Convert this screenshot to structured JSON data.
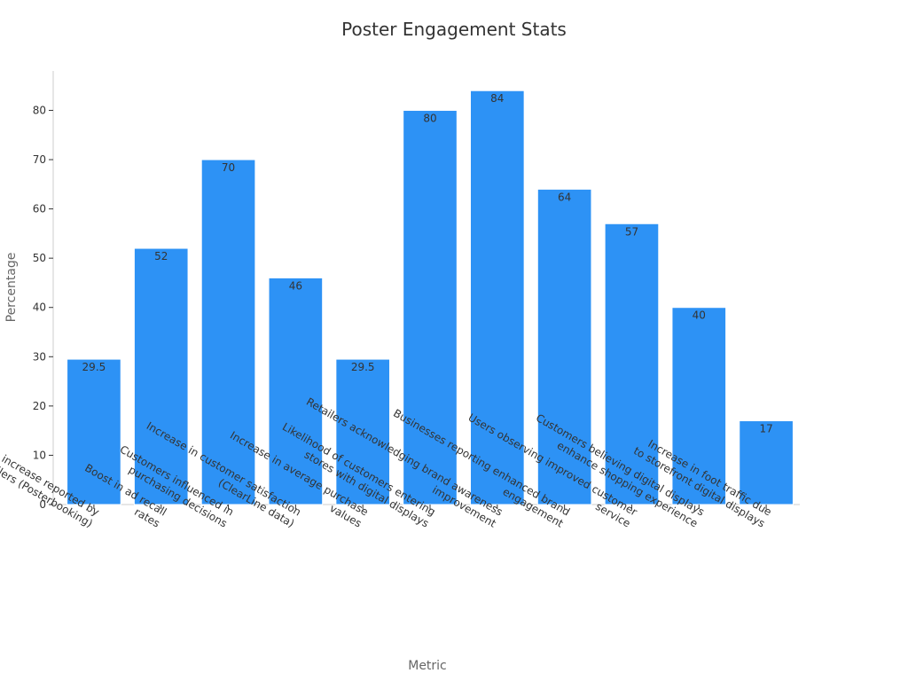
{
  "chart_data": {
    "type": "bar",
    "title": "Poster Engagement Stats",
    "xlabel": "Metric",
    "ylabel": "Percentage",
    "categories": [
      [
        "Sales increase reported by",
        "retailers (Posterbooking)"
      ],
      [
        "Boost in ad recall",
        "rates"
      ],
      [
        "Customers influenced in",
        "purchasing decisions"
      ],
      [
        "Increase in customer satisfaction",
        "(ClearLine data)"
      ],
      [
        "Increase in average purchase",
        "values"
      ],
      [
        "Likelihood of customers entering",
        "stores with digital displays"
      ],
      [
        "Retailers acknowledging brand awareness",
        "improvement"
      ],
      [
        "Businesses reporting enhanced brand",
        "engagement"
      ],
      [
        "Users observing improved customer",
        "service"
      ],
      [
        "Customers believing digital displays",
        "enhance shopping experience"
      ],
      [
        "Increase in foot traffic due",
        "to storefront digital displays"
      ]
    ],
    "values": [
      29.5,
      52,
      70,
      46,
      29.5,
      80,
      84,
      64,
      57,
      40,
      17
    ],
    "data_labels": [
      "29.5",
      "52",
      "70",
      "46",
      "29.5",
      "80",
      "84",
      "64",
      "57",
      "40",
      "17"
    ],
    "yticks": [
      0,
      10,
      20,
      30,
      40,
      50,
      60,
      70,
      80
    ],
    "ylim": [
      0,
      88
    ],
    "grid": false,
    "legend": "none",
    "colors": {
      "bar": "#2d92f5",
      "axis": "#cccccc",
      "text": "#333333",
      "axis_title": "#666666"
    }
  }
}
